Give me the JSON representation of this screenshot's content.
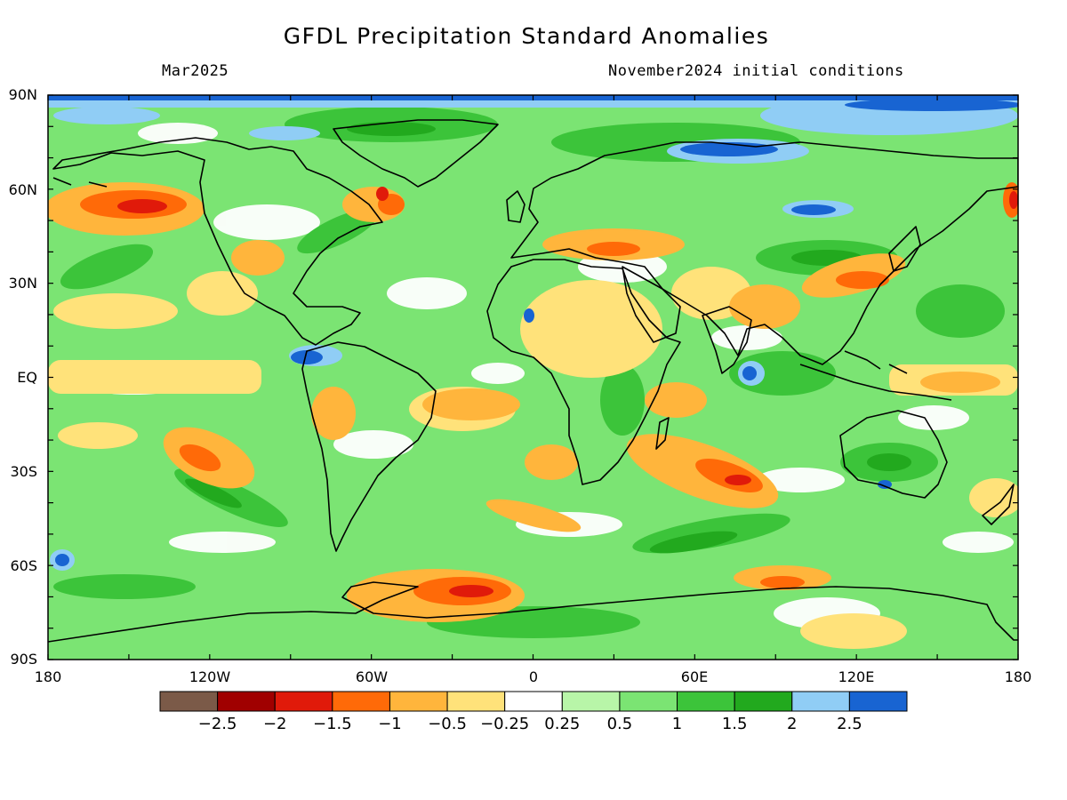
{
  "header": {
    "title": "GFDL Precipitation Standard Anomalies",
    "valid_month": "Mar2025",
    "init_label": "November2024 initial conditions"
  },
  "map": {
    "lat_labels": [
      "90N",
      "60N",
      "30N",
      "EQ",
      "30S",
      "60S",
      "90S"
    ],
    "lon_labels": [
      "180",
      "120W",
      "60W",
      "0",
      "60E",
      "120E",
      "180"
    ]
  },
  "colorbar": {
    "colors": [
      "#7b5a48",
      "#a00000",
      "#e01a0a",
      "#ff6a08",
      "#ffb53c",
      "#ffe27a",
      "#ffffff",
      "#b8f5a8",
      "#7be473",
      "#3cc43a",
      "#22a91e",
      "#90cdf5",
      "#1864d2"
    ],
    "labels": [
      "−2.5",
      "−2",
      "−1.5",
      "−1",
      "−0.5",
      "−0.25",
      "0.25",
      "0.5",
      "1",
      "1.5",
      "2",
      "2.5"
    ]
  }
}
